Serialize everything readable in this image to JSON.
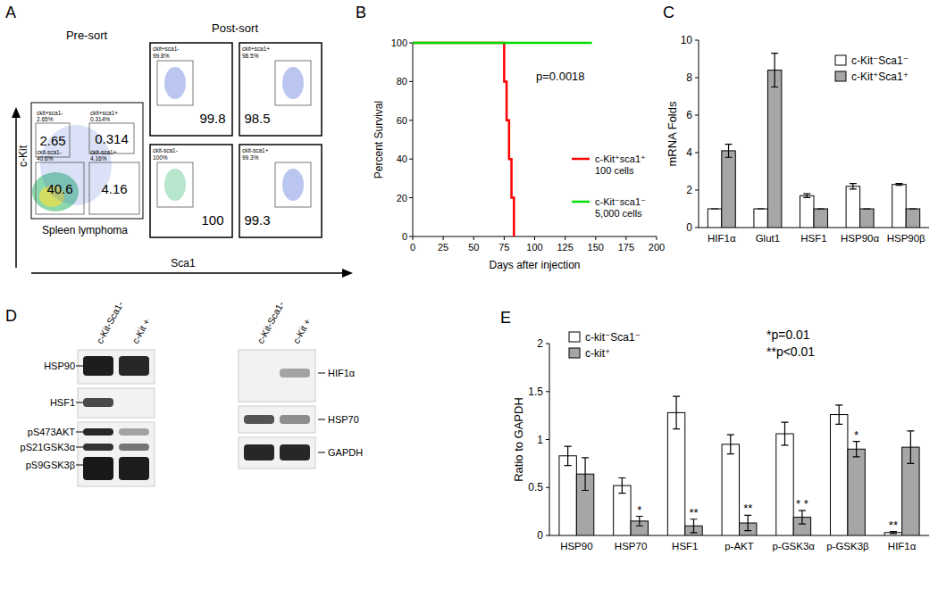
{
  "panel_labels": [
    "A",
    "B",
    "C",
    "D",
    "E"
  ],
  "flow": {
    "pre_title": "Pre-sort",
    "post_title": "Post-sort",
    "sample": "Spleen lymphoma",
    "y_axis": "c-Kit",
    "x_axis": "Sca1",
    "pre_gates": [
      {
        "label": "ckit+sca1-",
        "percent": "2.65%",
        "value": 2.65
      },
      {
        "label": "ckit+sca1+",
        "percent": "0.314%",
        "value": 0.314
      },
      {
        "label": "ckit-sca1-",
        "percent": "40.6%",
        "value": 40.6
      },
      {
        "label": "ckit-sca1+",
        "percent": "4.16%",
        "value": 4.16
      }
    ],
    "post_gates": [
      {
        "label": "ckit+sca1-",
        "percent": "99.8%",
        "value": 99.8
      },
      {
        "label": "ckit+sca1+",
        "percent": "98.5%",
        "value": 98.5
      },
      {
        "label": "ckit-sca1-",
        "percent": "100%",
        "value": 100
      },
      {
        "label": "ckit-sca1+",
        "percent": "99.3%",
        "value": 99.3
      }
    ]
  },
  "blot": {
    "lanes": [
      "c-Kit-Sca1-",
      "c-Kit +"
    ],
    "left_labels": [
      "HSP90",
      "HSF1",
      "pS473AKT",
      "pS21GSK3α",
      "pS9GSK3β"
    ],
    "right_labels": [
      "HIF1α",
      "HSP70",
      "GAPDH"
    ]
  },
  "chart_data": [
    {
      "type": "line",
      "x_label": "Days after injection",
      "y_label": "Percent Survival",
      "annotations": [
        "p=0.0018"
      ],
      "xlim": [
        0,
        200
      ],
      "xticks": [
        0,
        25,
        50,
        75,
        100,
        125,
        150,
        175,
        200
      ],
      "ylim": [
        0,
        100
      ],
      "yticks": [
        0,
        20,
        40,
        60,
        80,
        100
      ],
      "series": [
        {
          "name": "c-Kit⁺sca1⁺ 100 cells",
          "color": "#ff0000",
          "line_style": "solid",
          "x": [
            0,
            75,
            75,
            77,
            77,
            79,
            79,
            81,
            81,
            83,
            83
          ],
          "values": [
            100,
            100,
            80,
            80,
            60,
            60,
            40,
            40,
            20,
            20,
            0
          ]
        },
        {
          "name": "c-Kit⁻sca1⁻ 5,000 cells",
          "color": "#00dd00",
          "line_style": "solid",
          "x": [
            0,
            147
          ],
          "values": [
            100,
            100
          ]
        }
      ]
    },
    {
      "type": "bar",
      "y_label": "mRNA Folds",
      "categories": [
        "HIF1α",
        "Glut1",
        "HSF1",
        "HSP90α",
        "HSP90β"
      ],
      "ylim": [
        0,
        10
      ],
      "yticks": [
        0,
        2,
        4,
        6,
        8,
        10
      ],
      "legend": "upper right",
      "series": [
        {
          "name": "c-Kit⁻Sca1⁻",
          "color": "#ffffff",
          "values": [
            1,
            1,
            1.7,
            2.2,
            2.3
          ],
          "errors": [
            0,
            0,
            0.1,
            0.15,
            0.05
          ]
        },
        {
          "name": "c-Kit⁺Sca1⁺",
          "color": "#a6a6a6",
          "values": [
            4.1,
            8.4,
            1,
            1,
            1
          ],
          "errors": [
            0.35,
            0.9,
            0,
            0,
            0
          ]
        }
      ]
    },
    {
      "type": "bar",
      "y_label": "Ratio to GAPDH",
      "categories": [
        "HSP90",
        "HSP70",
        "HSF1",
        "p-AKT",
        "p-GSK3α",
        "p-GSK3β",
        "HIF1α"
      ],
      "ylim": [
        0,
        2
      ],
      "yticks": [
        0,
        0.5,
        1,
        1.5,
        2
      ],
      "legend": "upper left",
      "annotations": [
        "*p=0.01",
        "**p<0.01"
      ],
      "series": [
        {
          "name": "c-kit⁻Sca1⁻",
          "color": "#ffffff",
          "values": [
            0.83,
            0.52,
            1.28,
            0.95,
            1.06,
            1.26,
            0.03
          ],
          "errors": [
            0.1,
            0.08,
            0.17,
            0.1,
            0.12,
            0.1,
            0.01
          ]
        },
        {
          "name": "c-kit⁺",
          "color": "#a6a6a6",
          "values": [
            0.64,
            0.15,
            0.1,
            0.13,
            0.19,
            0.9,
            0.92
          ],
          "errors": [
            0.17,
            0.05,
            0.07,
            0.08,
            0.07,
            0.08,
            0.17
          ]
        }
      ],
      "significance": [
        {
          "series": 1,
          "index": 1,
          "text": "*"
        },
        {
          "series": 1,
          "index": 2,
          "text": "**"
        },
        {
          "series": 1,
          "index": 3,
          "text": "**"
        },
        {
          "series": 1,
          "index": 4,
          "text": "* *"
        },
        {
          "series": 1,
          "index": 5,
          "text": "*"
        },
        {
          "series": 0,
          "index": 6,
          "text": "**"
        }
      ]
    }
  ]
}
